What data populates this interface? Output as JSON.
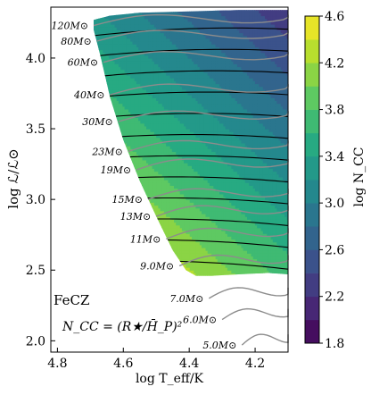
{
  "chart_data": {
    "type": "heatmap",
    "title": "",
    "panel_label": "FeCZ",
    "formula_label": "N_CC = (R★/H̄_P)²",
    "xlabel": "log T_eff/K",
    "ylabel": "log ℒ/ℒ⊙",
    "xlim": [
      4.82,
      4.1
    ],
    "ylim": [
      1.92,
      4.36
    ],
    "x_ticks": [
      {
        "value": 4.8,
        "label": "4.8"
      },
      {
        "value": 4.6,
        "label": "4.6"
      },
      {
        "value": 4.4,
        "label": "4.4"
      },
      {
        "value": 4.2,
        "label": "4.2"
      }
    ],
    "y_ticks": [
      {
        "value": 2.0,
        "label": "2.0"
      },
      {
        "value": 2.5,
        "label": "2.5"
      },
      {
        "value": 3.0,
        "label": "3.0"
      },
      {
        "value": 3.5,
        "label": "3.5"
      },
      {
        "value": 4.0,
        "label": "4.0"
      }
    ],
    "colorbar": {
      "label": "log N_CC",
      "min": 1.8,
      "max": 4.6,
      "levels": 14,
      "ticks": [
        {
          "value": 1.8,
          "label": "1.8"
        },
        {
          "value": 2.2,
          "label": "2.2"
        },
        {
          "value": 2.6,
          "label": "2.6"
        },
        {
          "value": 3.0,
          "label": "3.0"
        },
        {
          "value": 3.4,
          "label": "3.4"
        },
        {
          "value": 3.8,
          "label": "3.8"
        },
        {
          "value": 4.2,
          "label": "4.2"
        },
        {
          "value": 4.6,
          "label": "4.6"
        }
      ]
    },
    "tracks": [
      {
        "label": "120M⊙",
        "logT": 4.69,
        "logL": 4.23
      },
      {
        "label": "80M⊙",
        "logT": 4.68,
        "logL": 4.12
      },
      {
        "label": "60M⊙",
        "logT": 4.66,
        "logL": 3.97
      },
      {
        "label": "40M⊙",
        "logT": 4.64,
        "logL": 3.74
      },
      {
        "label": "30M⊙",
        "logT": 4.615,
        "logL": 3.55
      },
      {
        "label": "23M⊙",
        "logT": 4.585,
        "logL": 3.34
      },
      {
        "label": "19M⊙",
        "logT": 4.56,
        "logL": 3.21
      },
      {
        "label": "15M⊙",
        "logT": 4.525,
        "logL": 3.0
      },
      {
        "label": "13M⊙",
        "logT": 4.5,
        "logL": 2.88
      },
      {
        "label": "11M⊙",
        "logT": 4.47,
        "logL": 2.72
      },
      {
        "label": "9.0M⊙",
        "logT": 4.43,
        "logL": 2.53
      },
      {
        "label": "7.0M⊙",
        "logT": 4.34,
        "logL": 2.3
      },
      {
        "label": "6.0M⊙",
        "logT": 4.3,
        "logL": 2.15
      },
      {
        "label": "5.0M⊙",
        "logT": 4.24,
        "logL": 1.97
      }
    ]
  },
  "colors": {
    "viridis": [
      "#440154",
      "#472d7b",
      "#3b528b",
      "#2c728e",
      "#21918c",
      "#28ae80",
      "#5ec962",
      "#addc30",
      "#fde725"
    ],
    "contour": "#000000",
    "track": "#8c8c8c"
  }
}
